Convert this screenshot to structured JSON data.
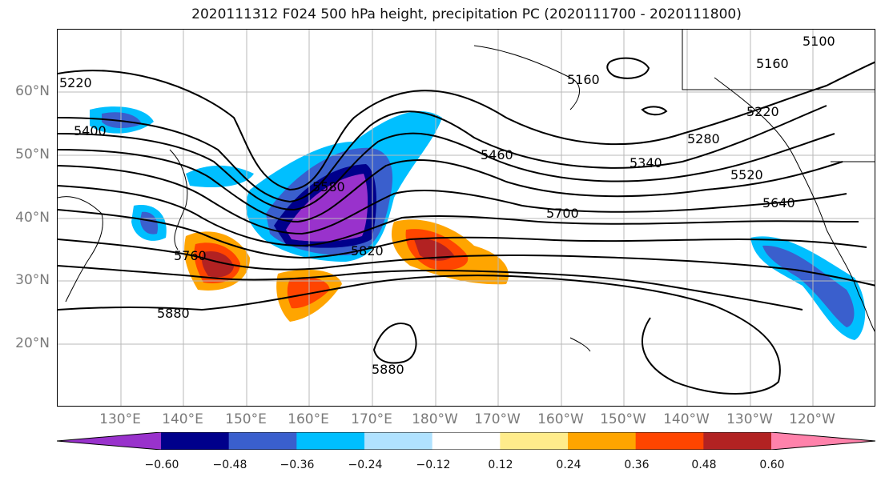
{
  "title": "2020111312 F024 500 hPa height, precipitation PC (2020111700 - 2020111800)",
  "lat_labels": [
    "60°N",
    "50°N",
    "40°N",
    "30°N",
    "20°N"
  ],
  "lon_labels": [
    "130°E",
    "140°E",
    "150°E",
    "160°E",
    "170°E",
    "180°W",
    "170°W",
    "160°W",
    "150°W",
    "140°W",
    "130°W",
    "120°W"
  ],
  "contour_labels": [
    "5220",
    "5400",
    "5160",
    "5100",
    "5160",
    "5220",
    "5280",
    "5340",
    "5460",
    "5520",
    "5580",
    "5640",
    "5700",
    "5760",
    "5820",
    "5880",
    "5880"
  ],
  "colorbar": {
    "ticks": [
      "−0.60",
      "−0.48",
      "−0.36",
      "−0.24",
      "−0.12",
      "0.12",
      "0.24",
      "0.36",
      "0.48",
      "0.60"
    ],
    "colors": [
      "#9932cc",
      "#00008b",
      "#3a5fcd",
      "#00bfff",
      "#b0e2ff",
      "#ffffff",
      "#ffec8b",
      "#ffa500",
      "#ff4500",
      "#b22222",
      "#ff82ab"
    ]
  }
}
